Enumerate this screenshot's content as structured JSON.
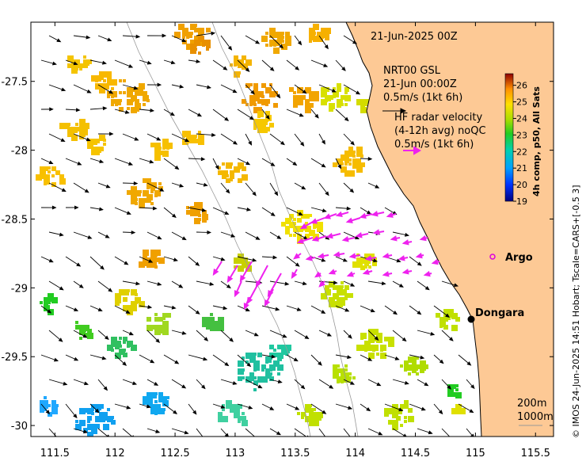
{
  "map": {
    "date_label": "21-Jun-2025 00Z",
    "x_ticks": [
      "111.5",
      "112",
      "112.5",
      "113",
      "113.5",
      "114",
      "114.5",
      "115",
      "115.5"
    ],
    "y_ticks": [
      "-27.5",
      "-28",
      "-28.5",
      "-29",
      "-29.5",
      "-30"
    ],
    "xlim": [
      111.3,
      115.65
    ],
    "ylim": [
      -30.08,
      -27.07
    ],
    "land_color": "#fdc995",
    "current_legend": {
      "line1": "NRT00 GSL",
      "line2": "21-Jun 00:00Z",
      "line3": "0.5m/s (1kt 6h)"
    },
    "hf_legend": {
      "line1": "HF radar velocity",
      "line2": "(4-12h avg) noQC",
      "line3": "0.5m/s (1kt 6h)",
      "color": "#ee22ee"
    },
    "places": [
      {
        "name": "Argo",
        "lon": 115.03,
        "lat": -28.89,
        "marker": "circle",
        "color": "#dd00dd"
      },
      {
        "name": "Dongara",
        "lon": 114.93,
        "lat": -29.25,
        "marker": "dot",
        "color": "#000000"
      }
    ],
    "depth_labels": [
      "200m",
      "1000m"
    ]
  },
  "colorbar": {
    "ticks": [
      "26",
      "25",
      "24",
      "23",
      "22",
      "21",
      "20",
      "19"
    ],
    "range": [
      19,
      26.7
    ],
    "label": "4h comp, p50, All Sats"
  },
  "credit": "© IMOS 24-Jun-2025 14:51 Hobart; Tscale=CARS+[-0.5 3]"
}
